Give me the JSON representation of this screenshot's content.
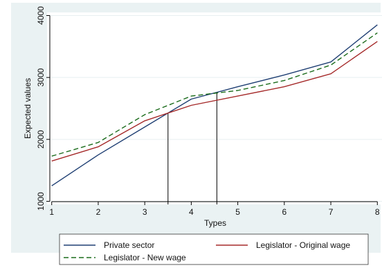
{
  "chart_data": {
    "type": "line",
    "title": "",
    "xlabel": "Types",
    "ylabel": "Expected values",
    "x": [
      1,
      2,
      3,
      4,
      5,
      6,
      7,
      8
    ],
    "xticks": [
      "1",
      "2",
      "3",
      "4",
      "5",
      "6",
      "7",
      "8"
    ],
    "yticks": [
      "1000",
      "2000",
      "3000",
      "4000"
    ],
    "xlim": [
      0.9,
      8.1
    ],
    "ylim": [
      950,
      4050
    ],
    "grid": "horizontal",
    "legend_position": "bottom",
    "series": [
      {
        "name": "Private sector",
        "color": "#1f3f73",
        "dash": "solid",
        "values": [
          1250,
          1750,
          2200,
          2650,
          2850,
          3040,
          3250,
          3850
        ]
      },
      {
        "name": "Legislator - Original wage",
        "color": "#a52a2a",
        "dash": "solid",
        "values": [
          1650,
          1880,
          2300,
          2550,
          2700,
          2850,
          3060,
          3580
        ]
      },
      {
        "name": "Legislator - New wage",
        "color": "#1a6b1a",
        "dash": "dashed",
        "values": [
          1730,
          1950,
          2400,
          2700,
          2790,
          2950,
          3200,
          3720
        ]
      }
    ],
    "vertical_markers": [
      3.5,
      4.55
    ],
    "colors": {
      "outer_background": "#eaf2f3",
      "plot_background": "#ffffff",
      "grid": "#e8eff1",
      "marker_line": "#000000"
    }
  }
}
